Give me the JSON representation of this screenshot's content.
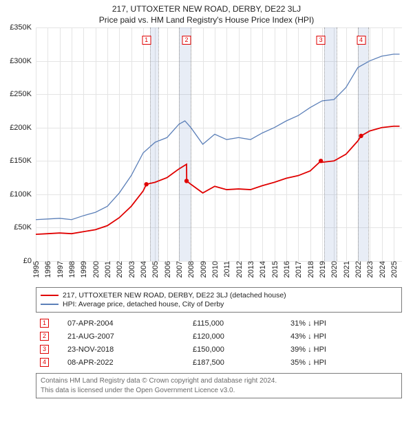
{
  "title_line1": "217, UTTOXETER NEW ROAD, DERBY, DE22 3LJ",
  "title_line2": "Price paid vs. HM Land Registry's House Price Index (HPI)",
  "chart": {
    "type": "line",
    "x_min": 1995,
    "x_max": 2025.7,
    "y_min": 0,
    "y_max": 350000,
    "y_ticks": [
      0,
      50000,
      100000,
      150000,
      200000,
      250000,
      300000,
      350000
    ],
    "y_tick_labels": [
      "£0",
      "£50K",
      "£100K",
      "£150K",
      "£200K",
      "£250K",
      "£300K",
      "£350K"
    ],
    "x_ticks": [
      1995,
      1996,
      1997,
      1998,
      1999,
      2000,
      2001,
      2002,
      2003,
      2004,
      2005,
      2006,
      2007,
      2008,
      2009,
      2010,
      2011,
      2012,
      2013,
      2014,
      2015,
      2016,
      2017,
      2018,
      2019,
      2020,
      2021,
      2022,
      2023,
      2024,
      2025
    ],
    "grid_color": "#e4e4e4",
    "background": "#ffffff",
    "shaded_bands": [
      {
        "from": 2004.6,
        "to": 2005.3
      },
      {
        "from": 2007.0,
        "to": 2008.0
      },
      {
        "from": 2019.2,
        "to": 2020.2
      },
      {
        "from": 2022.0,
        "to": 2022.9
      }
    ],
    "markers": [
      {
        "n": "1",
        "x": 2004.27,
        "y_box": 12
      },
      {
        "n": "2",
        "x": 2007.64,
        "y_box": 12
      },
      {
        "n": "3",
        "x": 2018.9,
        "y_box": 12
      },
      {
        "n": "4",
        "x": 2022.27,
        "y_box": 12
      }
    ],
    "series": [
      {
        "name": "hpi",
        "color": "#5b7fb8",
        "width": 1.3,
        "points": [
          [
            1995,
            62000
          ],
          [
            1996,
            63000
          ],
          [
            1997,
            64000
          ],
          [
            1998,
            62000
          ],
          [
            1999,
            68000
          ],
          [
            2000,
            73000
          ],
          [
            2001,
            82000
          ],
          [
            2002,
            102000
          ],
          [
            2003,
            128000
          ],
          [
            2004,
            162000
          ],
          [
            2005,
            178000
          ],
          [
            2006,
            185000
          ],
          [
            2007,
            205000
          ],
          [
            2007.5,
            210000
          ],
          [
            2008,
            200000
          ],
          [
            2009,
            175000
          ],
          [
            2010,
            190000
          ],
          [
            2011,
            182000
          ],
          [
            2012,
            185000
          ],
          [
            2013,
            182000
          ],
          [
            2014,
            192000
          ],
          [
            2015,
            200000
          ],
          [
            2016,
            210000
          ],
          [
            2017,
            218000
          ],
          [
            2018,
            230000
          ],
          [
            2019,
            240000
          ],
          [
            2020,
            242000
          ],
          [
            2021,
            260000
          ],
          [
            2022,
            290000
          ],
          [
            2023,
            300000
          ],
          [
            2024,
            307000
          ],
          [
            2025,
            310000
          ],
          [
            2025.5,
            310000
          ]
        ]
      },
      {
        "name": "price_paid",
        "color": "#e00000",
        "width": 1.8,
        "points": [
          [
            1995,
            40000
          ],
          [
            1996,
            41000
          ],
          [
            1997,
            42000
          ],
          [
            1998,
            41000
          ],
          [
            1999,
            44000
          ],
          [
            2000,
            47000
          ],
          [
            2001,
            53000
          ],
          [
            2002,
            65000
          ],
          [
            2003,
            82000
          ],
          [
            2004,
            105000
          ],
          [
            2004.27,
            115000
          ],
          [
            2005,
            118000
          ],
          [
            2006,
            125000
          ],
          [
            2007,
            138000
          ],
          [
            2007.64,
            145000
          ],
          [
            2007.65,
            120000
          ],
          [
            2008,
            115000
          ],
          [
            2009,
            102000
          ],
          [
            2010,
            112000
          ],
          [
            2011,
            107000
          ],
          [
            2012,
            108000
          ],
          [
            2013,
            107000
          ],
          [
            2014,
            113000
          ],
          [
            2015,
            118000
          ],
          [
            2016,
            124000
          ],
          [
            2017,
            128000
          ],
          [
            2018,
            135000
          ],
          [
            2018.9,
            150000
          ],
          [
            2019,
            148000
          ],
          [
            2020,
            150000
          ],
          [
            2021,
            160000
          ],
          [
            2022,
            180000
          ],
          [
            2022.27,
            187500
          ],
          [
            2023,
            195000
          ],
          [
            2024,
            200000
          ],
          [
            2025,
            202000
          ],
          [
            2025.5,
            202000
          ]
        ],
        "dots": [
          [
            2004.27,
            115000
          ],
          [
            2007.64,
            120000
          ],
          [
            2018.9,
            150000
          ],
          [
            2022.27,
            187500
          ]
        ]
      }
    ]
  },
  "legend": {
    "rows": [
      {
        "color": "#e00000",
        "label": "217, UTTOXETER NEW ROAD, DERBY, DE22 3LJ (detached house)"
      },
      {
        "color": "#5b7fb8",
        "label": "HPI: Average price, detached house, City of Derby"
      }
    ]
  },
  "sales": [
    {
      "n": "1",
      "date": "07-APR-2004",
      "price": "£115,000",
      "delta": "31% ↓ HPI"
    },
    {
      "n": "2",
      "date": "21-AUG-2007",
      "price": "£120,000",
      "delta": "43% ↓ HPI"
    },
    {
      "n": "3",
      "date": "23-NOV-2018",
      "price": "£150,000",
      "delta": "39% ↓ HPI"
    },
    {
      "n": "4",
      "date": "08-APR-2022",
      "price": "£187,500",
      "delta": "35% ↓ HPI"
    }
  ],
  "footer_line1": "Contains HM Land Registry data © Crown copyright and database right 2024.",
  "footer_line2": "This data is licensed under the Open Government Licence v3.0."
}
